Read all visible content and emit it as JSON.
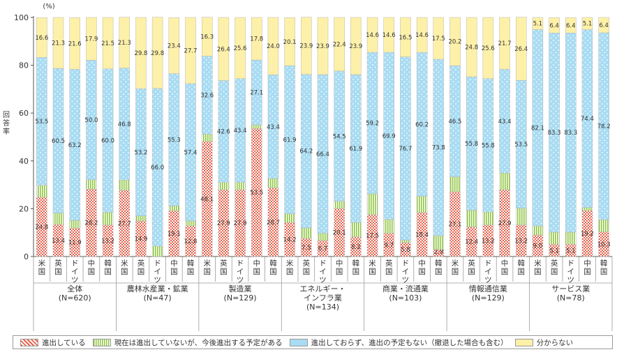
{
  "chart_data": {
    "type": "bar",
    "stacked": true,
    "y_unit": "(%)",
    "ylabel": "回答率",
    "ylim": [
      0,
      100
    ],
    "yticks": [
      0,
      20,
      40,
      60,
      80,
      100
    ],
    "legend_position": "bottom",
    "groups": [
      {
        "label": "全体\n(N=620)",
        "categories": [
          "米国",
          "英国",
          "ドイツ",
          "中国",
          "韓国"
        ]
      },
      {
        "label": "農林水産業・鉱業\n(N=47)",
        "categories": [
          "米国",
          "英国",
          "ドイツ",
          "中国",
          "韓国"
        ]
      },
      {
        "label": "製造業\n(N=129)",
        "categories": [
          "米国",
          "英国",
          "ドイツ",
          "中国",
          "韓国"
        ]
      },
      {
        "label": "エネルギー・\nインフラ業\n(N=134)",
        "categories": [
          "米国",
          "英国",
          "ドイツ",
          "中国",
          "韓国"
        ]
      },
      {
        "label": "商業・流通業\n(N=103)",
        "categories": [
          "米国",
          "英国",
          "ドイツ",
          "中国",
          "韓国"
        ]
      },
      {
        "label": "情報通信業\n(N=129)",
        "categories": [
          "米国",
          "英国",
          "ドイツ",
          "中国",
          "韓国"
        ]
      },
      {
        "label": "サービス業\n(N=78)",
        "categories": [
          "米国",
          "英国",
          "ドイツ",
          "中国",
          "韓国"
        ]
      }
    ],
    "series": [
      {
        "name": "進出している",
        "color": "#e8604a",
        "values": [
          24.8,
          13.4,
          11.9,
          28.2,
          13.2,
          27.7,
          14.9,
          0.0,
          19.1,
          12.8,
          48.1,
          27.9,
          27.9,
          53.5,
          28.7,
          14.2,
          7.5,
          6.7,
          20.1,
          8.2,
          17.5,
          9.7,
          5.8,
          18.4,
          2.9,
          27.1,
          12.4,
          13.2,
          27.9,
          13.2,
          9.0,
          5.1,
          5.1,
          19.2,
          10.3
        ]
      },
      {
        "name": "現在は進出していないが、今後進出する予定がある",
        "color": "#8fc63f",
        "values": [
          5.0,
          4.8,
          3.2,
          3.9,
          5.3,
          4.3,
          2.1,
          4.3,
          2.1,
          2.1,
          3.1,
          3.1,
          3.1,
          1.6,
          3.9,
          3.7,
          4.5,
          3.0,
          3.0,
          6.0,
          8.7,
          5.8,
          1.0,
          6.8,
          5.8,
          6.2,
          7.0,
          5.4,
          7.0,
          7.0,
          3.8,
          5.1,
          5.1,
          1.3,
          5.1
        ]
      },
      {
        "name": "進出しておらず、進出の予定もない（撤退した場合も含む）",
        "color": "#a8dcf3",
        "values": [
          53.5,
          60.5,
          63.2,
          50.0,
          60.0,
          46.8,
          53.2,
          66.0,
          55.3,
          57.4,
          32.6,
          42.6,
          43.4,
          27.1,
          43.4,
          61.9,
          64.2,
          66.4,
          54.5,
          61.9,
          59.2,
          69.9,
          76.7,
          60.2,
          73.8,
          46.5,
          55.8,
          55.8,
          43.4,
          53.5,
          82.1,
          83.3,
          83.3,
          74.4,
          78.2
        ]
      },
      {
        "name": "分からない",
        "color": "#fbe89a",
        "values": [
          16.6,
          21.3,
          21.6,
          17.9,
          21.5,
          21.3,
          29.8,
          29.8,
          23.4,
          27.7,
          16.3,
          26.4,
          25.6,
          17.8,
          24.0,
          20.1,
          23.9,
          23.9,
          22.4,
          23.9,
          14.6,
          14.6,
          16.5,
          14.6,
          17.5,
          20.2,
          24.8,
          25.6,
          21.7,
          26.4,
          5.1,
          6.4,
          6.4,
          5.1,
          6.4
        ]
      }
    ]
  }
}
